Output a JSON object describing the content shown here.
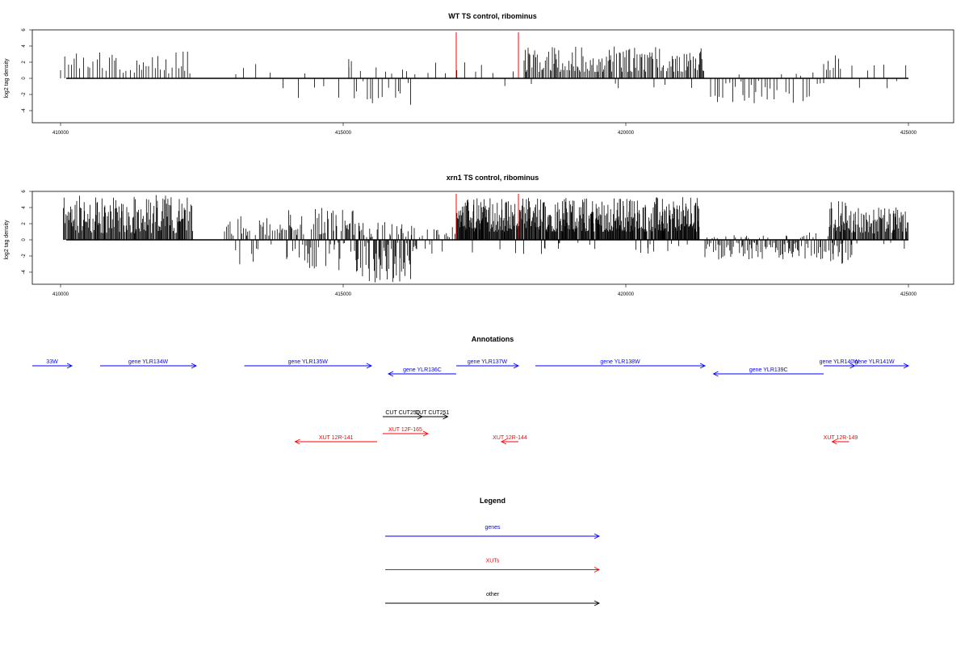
{
  "chart_data": [
    {
      "type": "bar",
      "title": "WT TS control, ribominus",
      "ylabel": "log2 tag density",
      "xlim": [
        409500,
        425800
      ],
      "ylim": [
        -5.5,
        6
      ],
      "xticks": [
        410000,
        415000,
        420000,
        425000
      ],
      "yticks": [
        -4,
        -2,
        0,
        2,
        4,
        6
      ],
      "grid": false,
      "highlights": [
        {
          "x": 417000,
          "value": 5.7,
          "color": "#ff0000"
        },
        {
          "x": 418100,
          "value": 5.7,
          "color": "#ff0000"
        }
      ],
      "series_color": "#000000",
      "profile": [
        {
          "from": 410000,
          "to": 412300,
          "step": 55,
          "min": 0.6,
          "max": 3.5,
          "neg": 0.0,
          "negMax": 0
        },
        {
          "from": 413100,
          "to": 415100,
          "step": 180,
          "min": 0.5,
          "max": 2.8,
          "neg": 0.4,
          "negMax": 2.2
        },
        {
          "from": 415100,
          "to": 416300,
          "step": 50,
          "min": 0.5,
          "max": 2.3,
          "neg": 0.6,
          "negMax": 3.0
        },
        {
          "from": 416500,
          "to": 418100,
          "step": 150,
          "min": 0.5,
          "max": 2.0,
          "neg": 0.1,
          "negMax": 1.0
        },
        {
          "from": 418200,
          "to": 421400,
          "step": 22,
          "min": 0.8,
          "max": 4.0,
          "neg": 0.05,
          "negMax": 1.0
        },
        {
          "from": 421500,
          "to": 423500,
          "step": 55,
          "min": 0.3,
          "max": 0.8,
          "neg": 0.85,
          "negMax": 2.8
        },
        {
          "from": 423500,
          "to": 423800,
          "step": 40,
          "min": 1.0,
          "max": 2.9,
          "neg": 0.2,
          "negMax": 1.5
        },
        {
          "from": 424000,
          "to": 425000,
          "step": 120,
          "min": 0.5,
          "max": 1.8,
          "neg": 0.2,
          "negMax": 1.0
        }
      ]
    },
    {
      "type": "bar",
      "title": "xrn1 TS control, ribominus",
      "ylabel": "log2 tag density",
      "xlim": [
        409500,
        425800
      ],
      "ylim": [
        -5.5,
        6
      ],
      "xticks": [
        410000,
        415000,
        420000,
        425000
      ],
      "yticks": [
        -4,
        -2,
        0,
        2,
        4,
        6
      ],
      "grid": false,
      "highlights": [
        {
          "x": 417000,
          "value": 5.7,
          "color": "#ff0000"
        },
        {
          "x": 418100,
          "value": 5.7,
          "color": "#ff0000"
        }
      ],
      "series_color": "#000000",
      "profile": [
        {
          "from": 410050,
          "to": 412350,
          "step": 14,
          "min": 0.8,
          "max": 5.6,
          "neg": 0.0,
          "negMax": 0
        },
        {
          "from": 412900,
          "to": 414000,
          "step": 30,
          "min": 0.5,
          "max": 3.0,
          "neg": 0.15,
          "negMax": 2.8
        },
        {
          "from": 414000,
          "to": 415200,
          "step": 18,
          "min": 0.6,
          "max": 4.0,
          "neg": 0.4,
          "negMax": 3.5
        },
        {
          "from": 415200,
          "to": 416300,
          "step": 14,
          "min": 0.3,
          "max": 2.2,
          "neg": 0.7,
          "negMax": 5.2
        },
        {
          "from": 416300,
          "to": 417000,
          "step": 40,
          "min": 0.3,
          "max": 1.6,
          "neg": 0.3,
          "negMax": 1.5
        },
        {
          "from": 417000,
          "to": 421300,
          "step": 10,
          "min": 1.0,
          "max": 5.3,
          "neg": 0.04,
          "negMax": 1.5
        },
        {
          "from": 421400,
          "to": 423200,
          "step": 20,
          "min": 0.2,
          "max": 0.6,
          "neg": 0.8,
          "negMax": 2.2
        },
        {
          "from": 423200,
          "to": 423600,
          "step": 25,
          "min": 0.2,
          "max": 1.0,
          "neg": 0.7,
          "negMax": 2.5
        },
        {
          "from": 423600,
          "to": 424000,
          "step": 8,
          "min": 1.0,
          "max": 4.8,
          "neg": 0.4,
          "negMax": 3.0
        },
        {
          "from": 424000,
          "to": 425000,
          "step": 14,
          "min": 0.8,
          "max": 4.0,
          "neg": 0.05,
          "negMax": 1.0
        }
      ]
    },
    {
      "type": "annotation",
      "title": "Annotations",
      "xlim": [
        409500,
        425800
      ],
      "features": [
        {
          "label": "33W",
          "start": 409500,
          "end": 410200,
          "strand": "+",
          "color": "#0000ff",
          "row": 0
        },
        {
          "label": "gene YLR134W",
          "start": 410700,
          "end": 412400,
          "strand": "+",
          "color": "#0000ff",
          "row": 0
        },
        {
          "label": "gene YLR135W",
          "start": 413250,
          "end": 415500,
          "strand": "+",
          "color": "#0000ff",
          "row": 0
        },
        {
          "label": "gene YLR136C",
          "start": 415800,
          "end": 417000,
          "strand": "-",
          "color": "#0000ff",
          "row": 1
        },
        {
          "label": "gene YLR137W",
          "start": 417000,
          "end": 418100,
          "strand": "+",
          "color": "#0000ff",
          "row": 0
        },
        {
          "label": "gene YLR138W",
          "start": 418400,
          "end": 421400,
          "strand": "+",
          "color": "#0000ff",
          "row": 0
        },
        {
          "label": "gene YLR139C",
          "start": 421550,
          "end": 423500,
          "strand": "-",
          "color": "#0000ff",
          "row": 1
        },
        {
          "label": "gene YLR140W",
          "start": 423500,
          "end": 424050,
          "strand": "+",
          "color": "#0000ff",
          "row": 0
        },
        {
          "label": "gene YLR141W",
          "start": 423800,
          "end": 425000,
          "strand": "+",
          "color": "#0000ff",
          "row": 0
        },
        {
          "label": "CUT CUT250",
          "start": 415700,
          "end": 416400,
          "strand": "+",
          "color": "#000000",
          "row": 3
        },
        {
          "label": "CUT CUT251",
          "start": 416300,
          "end": 416850,
          "strand": "+",
          "color": "#000000",
          "row": 3
        },
        {
          "label": "XUT 12F-165",
          "start": 415700,
          "end": 416500,
          "strand": "+",
          "color": "#ff0000",
          "row": 4
        },
        {
          "label": "XUT 12R-141",
          "start": 414150,
          "end": 415600,
          "strand": "-",
          "color": "#ff0000",
          "row": 5
        },
        {
          "label": "XUT 12R-144",
          "start": 417800,
          "end": 418100,
          "strand": "-",
          "color": "#ff0000",
          "row": 5
        },
        {
          "label": "XUT 12R-149",
          "start": 423650,
          "end": 423950,
          "strand": "-",
          "color": "#ff0000",
          "row": 5
        }
      ]
    },
    {
      "type": "legend",
      "title": "Legend",
      "items": [
        {
          "label": "genes",
          "color": "#0000ff"
        },
        {
          "label": "XUTs",
          "color": "#ff0000"
        },
        {
          "label": "other",
          "color": "#000000"
        }
      ]
    }
  ]
}
